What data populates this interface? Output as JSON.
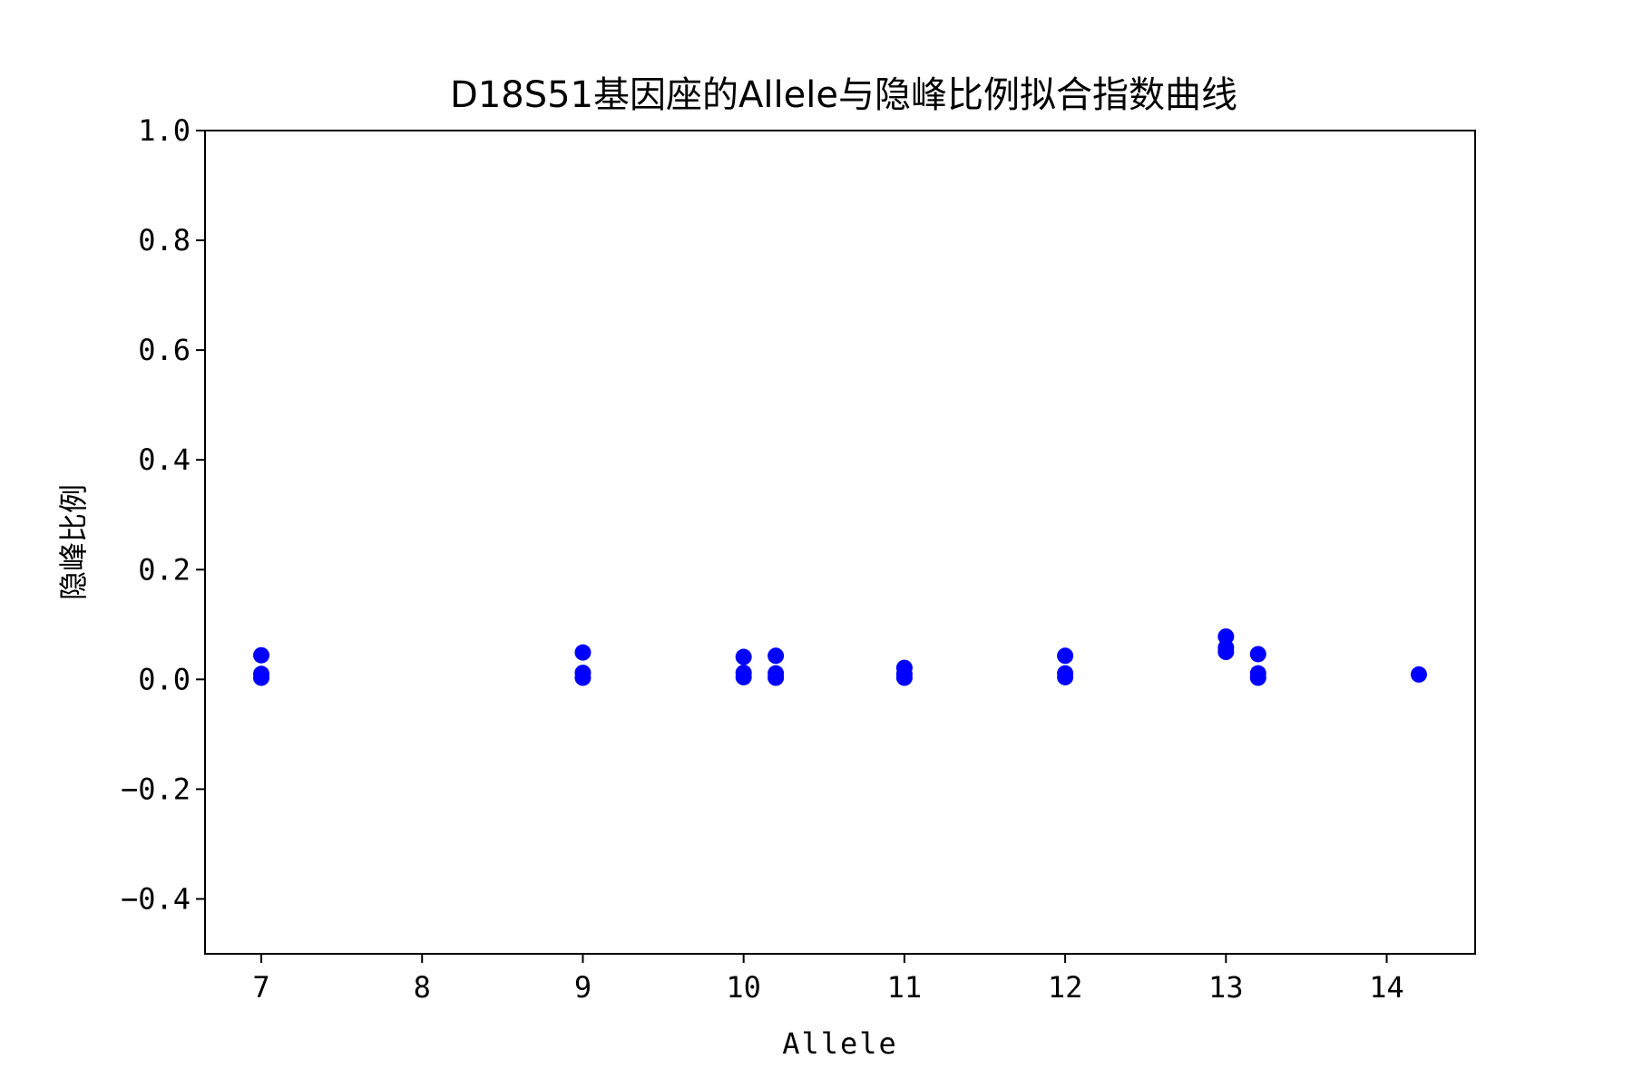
{
  "chart_data": {
    "type": "scatter",
    "title": "D18S51基因座的Allele与隐峰比例拟合指数曲线",
    "xlabel": "Allele",
    "ylabel": "隐峰比例",
    "xlim": [
      6.65,
      14.55
    ],
    "ylim": [
      -0.5,
      1.0
    ],
    "xticks": [
      7,
      8,
      9,
      10,
      11,
      12,
      13,
      14
    ],
    "xtick_labels": [
      "7",
      "8",
      "9",
      "10",
      "11",
      "12",
      "13",
      "14"
    ],
    "yticks": [
      -0.4,
      -0.2,
      0.0,
      0.2,
      0.4,
      0.6,
      0.8,
      1.0
    ],
    "ytick_labels": [
      "−0.4",
      "−0.2",
      "0.0",
      "0.2",
      "0.4",
      "0.6",
      "0.8",
      "1.0"
    ],
    "grid": false,
    "legend": "none",
    "marker_color": "#0000ff",
    "points": [
      {
        "x": 7,
        "y": 0.044
      },
      {
        "x": 7,
        "y": 0.01
      },
      {
        "x": 7,
        "y": 0.003
      },
      {
        "x": 9,
        "y": 0.049
      },
      {
        "x": 9,
        "y": 0.012
      },
      {
        "x": 9,
        "y": 0.003
      },
      {
        "x": 10,
        "y": 0.041
      },
      {
        "x": 10,
        "y": 0.012
      },
      {
        "x": 10,
        "y": 0.004
      },
      {
        "x": 10.2,
        "y": 0.043
      },
      {
        "x": 10.2,
        "y": 0.011
      },
      {
        "x": 10.2,
        "y": 0.003
      },
      {
        "x": 11,
        "y": 0.021
      },
      {
        "x": 11,
        "y": 0.01
      },
      {
        "x": 11,
        "y": 0.003
      },
      {
        "x": 12,
        "y": 0.043
      },
      {
        "x": 12,
        "y": 0.011
      },
      {
        "x": 12,
        "y": 0.004
      },
      {
        "x": 13,
        "y": 0.078
      },
      {
        "x": 13,
        "y": 0.058
      },
      {
        "x": 13,
        "y": 0.05
      },
      {
        "x": 13.2,
        "y": 0.046
      },
      {
        "x": 13.2,
        "y": 0.011
      },
      {
        "x": 13.2,
        "y": 0.003
      },
      {
        "x": 14.2,
        "y": 0.009
      }
    ]
  }
}
